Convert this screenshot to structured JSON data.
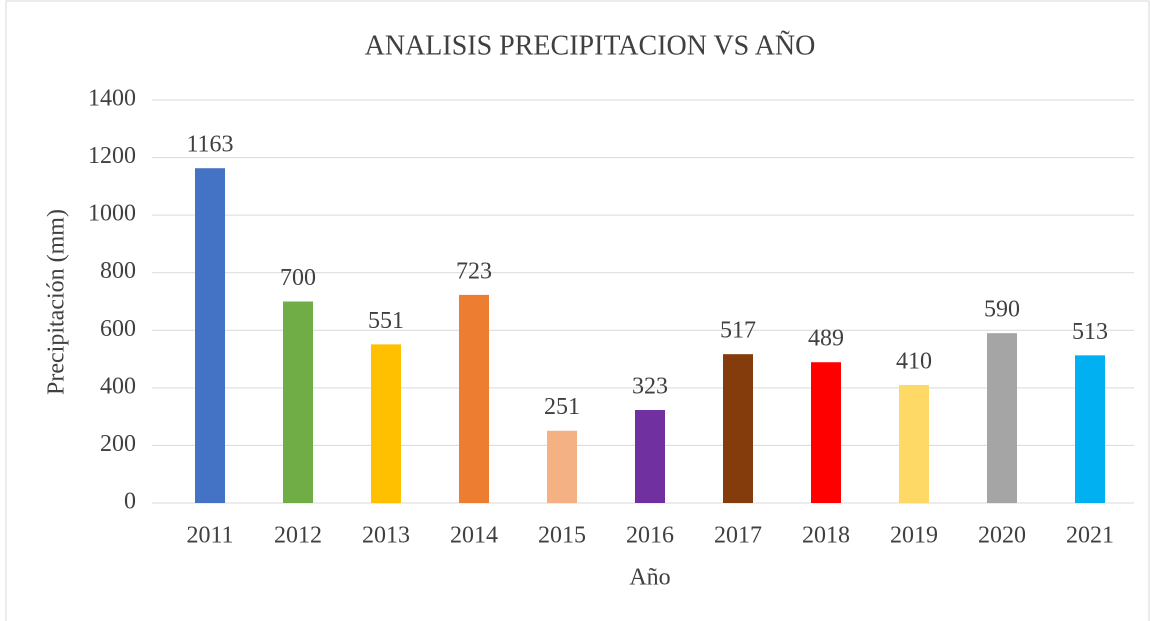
{
  "chart_data": {
    "type": "bar",
    "title": "ANALISIS PRECIPITACION VS AÑO",
    "x_label": "Año",
    "y_label": "Precipitación (mm)",
    "categories": [
      "2011",
      "2012",
      "2013",
      "2014",
      "2015",
      "2016",
      "2017",
      "2018",
      "2019",
      "2020",
      "2021"
    ],
    "values": [
      1163,
      700,
      551,
      723,
      251,
      323,
      517,
      489,
      410,
      590,
      513
    ],
    "colors": [
      "#4472c4",
      "#70ad47",
      "#ffc000",
      "#ed7d31",
      "#f4b183",
      "#7030a0",
      "#843c0c",
      "#ff0000",
      "#ffd966",
      "#a5a5a5",
      "#00b0f0"
    ],
    "ylim": [
      0,
      1400
    ],
    "yticks": [
      0,
      200,
      400,
      600,
      800,
      1000,
      1200,
      1400
    ],
    "grid": true
  }
}
